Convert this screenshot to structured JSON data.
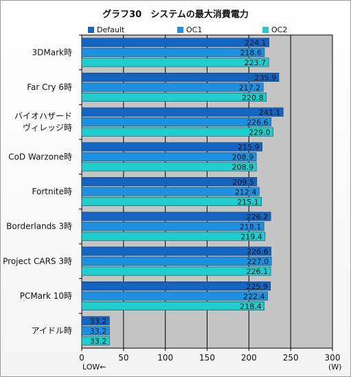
{
  "chart_data": {
    "type": "bar",
    "orientation": "horizontal",
    "title": "グラフ30　システムの最大消費電力",
    "categories": [
      "3DMark時",
      "Far Cry 6時",
      "バイオハザード\nヴィレッジ時",
      "CoD Warzone時",
      "Fortnite時",
      "Borderlands 3時",
      "Project CARS 3時",
      "PCMark 10時",
      "アイドル時"
    ],
    "series": [
      {
        "name": "Default",
        "color": "#1565c0",
        "values": [
          224.1,
          235.9,
          241.1,
          215.9,
          209.5,
          226.2,
          226.6,
          225.9,
          33.2
        ],
        "labels": [
          "224.1",
          "235.9",
          "241.1",
          "215.9",
          "209.5",
          "226.2",
          "226.6",
          "225.9",
          "33.2"
        ]
      },
      {
        "name": "OC1",
        "color": "#1e90e0",
        "values": [
          218.6,
          217.2,
          226.6,
          208.9,
          212.4,
          218.1,
          227.0,
          222.4,
          33.2
        ],
        "labels": [
          "218.6",
          "217.2",
          "226.6",
          "208.9",
          "212.4",
          "218.1",
          "227.0",
          "222.4",
          "33.2"
        ]
      },
      {
        "name": "OC2",
        "color": "#22cccc",
        "values": [
          223.7,
          220.8,
          229.0,
          208.9,
          215.1,
          219.4,
          226.1,
          218.4,
          33.2
        ],
        "labels": [
          "223.7",
          "220.8",
          "229.0",
          "208.9",
          "215.1",
          "219.4",
          "226.1",
          "218.4",
          "33.2"
        ]
      }
    ],
    "xlim": [
      0,
      300
    ],
    "xticks": [
      "0",
      "50",
      "100",
      "150",
      "200",
      "250",
      "300"
    ],
    "xlabel_left": "LOW←",
    "unit": "(W)",
    "grid": true,
    "legend_position": "top",
    "plot_background": "#c4c4c4"
  }
}
